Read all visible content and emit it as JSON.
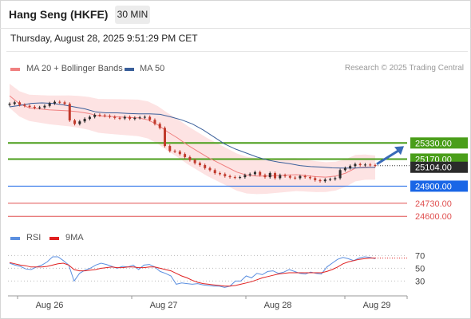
{
  "header": {
    "title": "Hang Seng (HKFE)",
    "timeframe": "30 MIN",
    "timestamp": "Thursday, August 28, 2025 9:51:29 PM CET"
  },
  "legend": {
    "bollinger_label": "MA 20 + Bollinger Bands",
    "ma50_label": "MA 50",
    "copyright": "Research © 2025 Trading Central",
    "rsi_label": "RSI",
    "rsi_ma_label": "9MA"
  },
  "colors": {
    "bollinger": "#f08080",
    "band_fill": "#fde3e3",
    "ma50": "#3a5f9a",
    "resistance": "#4a9e1a",
    "current": "#1a66e6",
    "support": "#e05050",
    "candle_up": "#2b2b2b",
    "candle_down": "#c0392b",
    "rsi": "#5b8fe0",
    "rsi_ma": "#e02020",
    "arrow": "#3a6bb8"
  },
  "chart_data": [
    {
      "type": "candlestick",
      "title": "Hang Seng (HKFE)",
      "x_labels": [
        "Aug 26",
        "Aug 27",
        "Aug 28",
        "Aug 29"
      ],
      "close_prices": [
        25720,
        25735,
        25710,
        25700,
        25690,
        25680,
        25685,
        25700,
        25725,
        25740,
        25735,
        25720,
        25555,
        25520,
        25545,
        25570,
        25590,
        25610,
        25605,
        25600,
        25590,
        25580,
        25575,
        25590,
        25570,
        25580,
        25585,
        25590,
        25560,
        25520,
        25480,
        25300,
        25250,
        25245,
        25220,
        25190,
        25160,
        25130,
        25110,
        25080,
        25060,
        25030,
        25020,
        25000,
        24990,
        24985,
        24990,
        25010,
        25020,
        25040,
        25010,
        24990,
        25030,
        24980,
        25010,
        25000,
        24985,
        24980,
        25000,
        24990,
        24980,
        24960,
        24950,
        24965,
        24970,
        24980,
        25060,
        25080,
        25100,
        25120,
        25110,
        25115,
        25110,
        25104
      ],
      "ma20": [
        25800,
        25720,
        25680,
        25670,
        25660,
        25655,
        25650,
        25640,
        25625,
        25600,
        25595,
        25590,
        25585,
        25580,
        25560,
        25510,
        25440,
        25380,
        25310,
        25250,
        25190,
        25140,
        25090,
        25040,
        25010,
        25000,
        25000,
        25005,
        25010,
        25015,
        25005,
        24995,
        24990,
        25000,
        25030,
        25080,
        25090,
        25085
      ],
      "ma50": [
        25690,
        25705,
        25725,
        25730,
        25725,
        25710,
        25690,
        25670,
        25640,
        25630,
        25630,
        25625,
        25620,
        25620,
        25615,
        25590,
        25560,
        25520,
        25460,
        25390,
        25320,
        25270,
        25230,
        25190,
        25160,
        25140,
        25125,
        25105,
        25095,
        25090,
        25082,
        25080,
        25080,
        25085,
        25088
      ],
      "levels": [
        {
          "value": 25330.0,
          "label": "25330.00",
          "kind": "resistance"
        },
        {
          "value": 25170.0,
          "label": "25170.00",
          "kind": "resistance"
        },
        {
          "value": 25104.0,
          "label": "25104.00",
          "kind": "last"
        },
        {
          "value": 24900.0,
          "label": "24900.00",
          "kind": "current"
        },
        {
          "value": 24730.0,
          "label": "24730.00",
          "kind": "support"
        },
        {
          "value": 24600.0,
          "label": "24600.00",
          "kind": "support"
        }
      ],
      "ylim": [
        24530,
        25960
      ]
    },
    {
      "type": "line",
      "title": "RSI",
      "series": [
        {
          "name": "RSI",
          "values": [
            58,
            55,
            53,
            49,
            48,
            52,
            55,
            60,
            68,
            68,
            62,
            55,
            30,
            42,
            47,
            50,
            55,
            58,
            56,
            53,
            50,
            53,
            52,
            55,
            48,
            55,
            56,
            52,
            45,
            42,
            38,
            25,
            27,
            26,
            25,
            26,
            24,
            23,
            22,
            22,
            20,
            22,
            30,
            30,
            38,
            35,
            42,
            40,
            45,
            46,
            42,
            44,
            48,
            45,
            42,
            41,
            44,
            42,
            41,
            52,
            58,
            64,
            67,
            65,
            62,
            66,
            68,
            67,
            65
          ]
        },
        {
          "name": "9MA",
          "values": [
            59,
            57,
            55,
            54,
            52,
            52,
            52,
            53,
            55,
            57,
            58,
            55,
            48,
            46,
            46,
            47,
            48,
            50,
            51,
            52,
            51,
            51,
            52,
            52,
            51,
            51,
            52,
            52,
            50,
            48,
            46,
            42,
            38,
            35,
            31,
            28,
            26,
            25,
            24,
            23,
            22,
            22,
            23,
            25,
            27,
            29,
            32,
            35,
            37,
            39,
            41,
            42,
            43,
            43,
            43,
            43,
            43,
            43,
            43,
            45,
            48,
            52,
            57,
            60,
            62,
            64,
            65,
            66,
            66
          ]
        }
      ],
      "y_ticks": [
        70,
        50,
        30
      ],
      "ylim": [
        18,
        78
      ]
    }
  ]
}
